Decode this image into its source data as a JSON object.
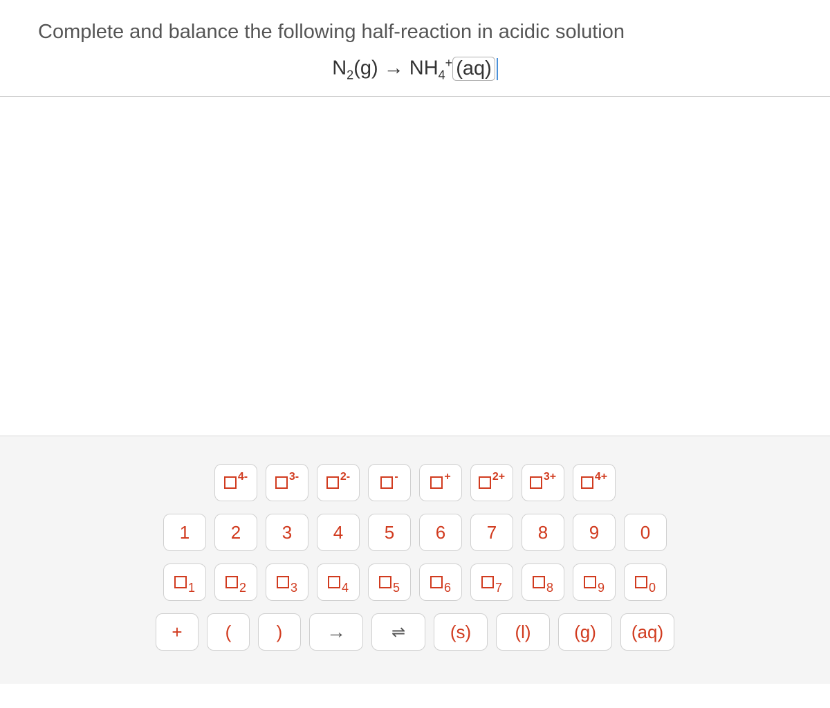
{
  "question": {
    "prompt": "Complete and balance the following half-reaction in acidic solution",
    "equation_lhs_element": "N",
    "equation_lhs_sub": "2",
    "equation_lhs_state": "(g)",
    "equation_arrow": "→",
    "equation_rhs_element": "NH",
    "equation_rhs_sub": "4",
    "equation_rhs_sup": "+",
    "equation_rhs_state": "(aq)"
  },
  "keypad": {
    "row_superscripts": {
      "sup4minus": "4-",
      "sup3minus": "3-",
      "sup2minus": "2-",
      "supminus": "-",
      "supplus": "+",
      "sup2plus": "2+",
      "sup3plus": "3+",
      "sup4plus": "4+"
    },
    "row_numbers": {
      "n1": "1",
      "n2": "2",
      "n3": "3",
      "n4": "4",
      "n5": "5",
      "n6": "6",
      "n7": "7",
      "n8": "8",
      "n9": "9",
      "n0": "0"
    },
    "row_subscripts": {
      "sub1": "1",
      "sub2": "2",
      "sub3": "3",
      "sub4": "4",
      "sub5": "5",
      "sub6": "6",
      "sub7": "7",
      "sub8": "8",
      "sub9": "9",
      "sub0": "0"
    },
    "row_symbols": {
      "plus": "+",
      "lparen": "(",
      "rparen": ")",
      "arrow": "→",
      "equilibrium": "⇌",
      "state_s": "(s)",
      "state_l": "(l)",
      "state_g": "(g)",
      "state_aq": "(aq)"
    }
  },
  "colors": {
    "key_text": "#d13b1f",
    "key_bg": "#ffffff",
    "key_border": "#d0d0d0",
    "keypad_bg": "#f5f5f5",
    "question_text": "#555555",
    "cursor": "#4a90d9"
  }
}
